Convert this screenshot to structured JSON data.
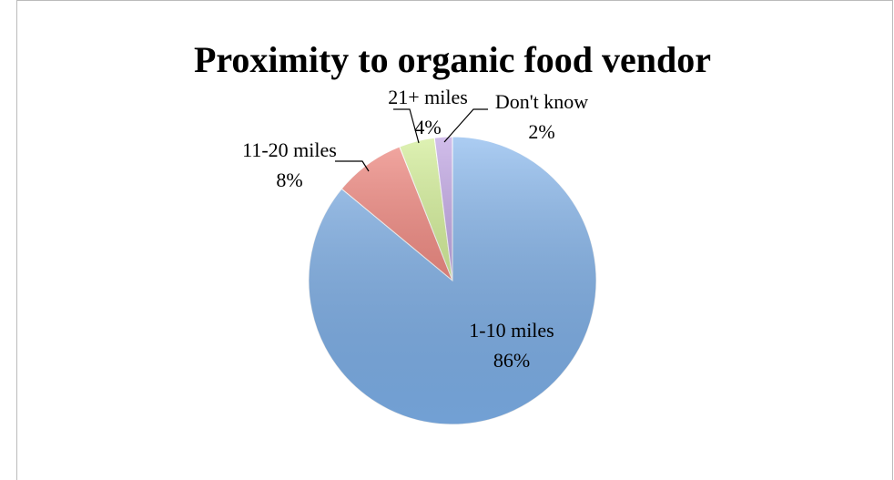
{
  "chart_data": {
    "type": "pie",
    "title": "Proximity to organic food vendor",
    "categories": [
      "1-10 miles",
      "11-20 miles",
      "21+ miles",
      "Don't know"
    ],
    "values": [
      86,
      8,
      4,
      2
    ],
    "value_labels": [
      "86%",
      "8%",
      "4%",
      "2%"
    ],
    "colors": [
      "#7fb2ec",
      "#ee7b72",
      "#cdeb8b",
      "#b99be0"
    ]
  }
}
